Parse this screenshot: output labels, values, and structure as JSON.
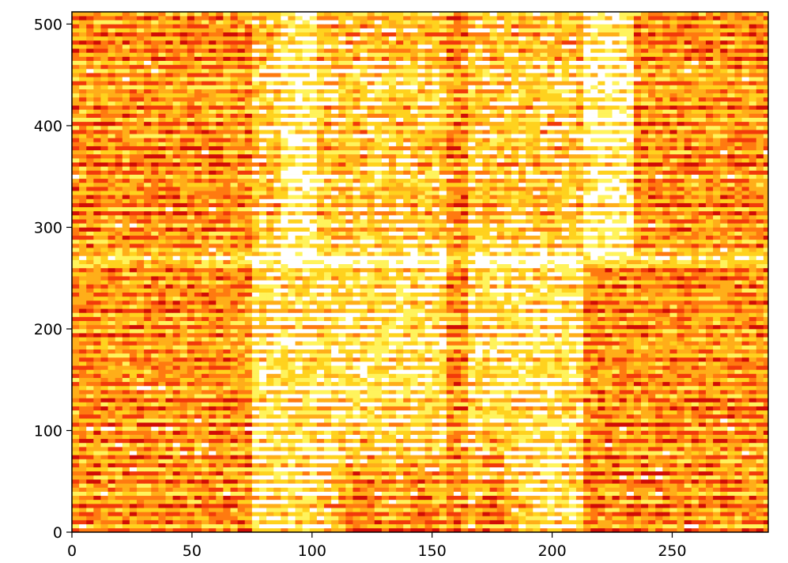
{
  "chart_data": {
    "type": "heatmap",
    "title": "",
    "xlabel": "",
    "ylabel": "",
    "xlim": [
      0,
      290
    ],
    "ylim": [
      0,
      512
    ],
    "x_ticks": [
      0,
      50,
      100,
      150,
      200,
      250
    ],
    "y_ticks": [
      0,
      100,
      200,
      300,
      400,
      500
    ],
    "x_tick_labels": [
      "0",
      "50",
      "100",
      "150",
      "200",
      "250"
    ],
    "y_tick_labels": [
      "0",
      "100",
      "200",
      "300",
      "400",
      "500"
    ],
    "grid": false,
    "colormap": [
      "#ffffff",
      "#fff35c",
      "#ffd21e",
      "#ffae19",
      "#ff7a10",
      "#f23a0a",
      "#d10d05"
    ],
    "background_color": "#ffa020",
    "speech_segments_x": [
      [
        74,
        135
      ],
      [
        135,
        157
      ],
      [
        166,
        212
      ]
    ],
    "bright_columns_x": [
      [
        86,
        101
      ],
      [
        213,
        235
      ]
    ],
    "horizontal_break_y": 270
  }
}
